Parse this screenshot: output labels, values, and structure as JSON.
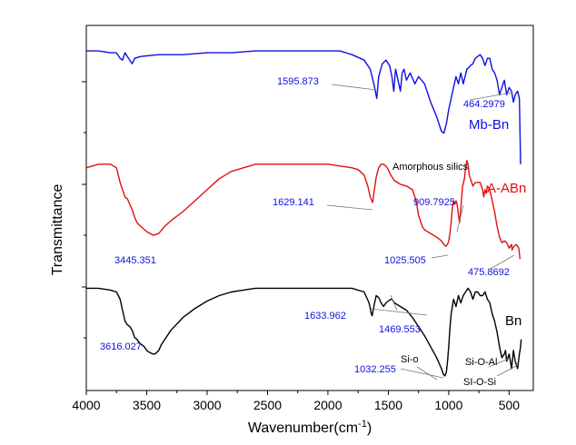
{
  "chart_data": {
    "type": "line",
    "xlabel": "Wavenumber(cm",
    "xlabel_sup": "-1",
    "xlabel_end": ")",
    "ylabel": "Transmittance",
    "xlim": [
      4000,
      300
    ],
    "x_reversed": true,
    "x_ticks": [
      4000,
      3500,
      3000,
      2500,
      2000,
      1500,
      1000,
      500
    ],
    "x_tick_labels": [
      "4000",
      "3500",
      "3000",
      "2500",
      "2000",
      "1500",
      "1000",
      "500"
    ],
    "ylim": [
      0,
      100
    ],
    "y_ticks_shown": false,
    "grid": false,
    "legend": "inline labels",
    "series": [
      {
        "name": "Mb-Bn",
        "color": "#1010e0",
        "points": [
          [
            4000,
            93
          ],
          [
            3900,
            93
          ],
          [
            3800,
            92.5
          ],
          [
            3750,
            92.5
          ],
          [
            3720,
            91
          ],
          [
            3700,
            90.5
          ],
          [
            3680,
            92.5
          ],
          [
            3650,
            91
          ],
          [
            3620,
            89.5
          ],
          [
            3600,
            91
          ],
          [
            3550,
            91.5
          ],
          [
            3400,
            92
          ],
          [
            3200,
            92
          ],
          [
            3000,
            92.5
          ],
          [
            2800,
            92.5
          ],
          [
            2600,
            93
          ],
          [
            2400,
            93
          ],
          [
            2200,
            93
          ],
          [
            2000,
            93
          ],
          [
            1900,
            93
          ],
          [
            1800,
            92
          ],
          [
            1700,
            90.5
          ],
          [
            1650,
            88
          ],
          [
            1620,
            84
          ],
          [
            1596,
            80
          ],
          [
            1580,
            86
          ],
          [
            1550,
            89.5
          ],
          [
            1520,
            90.5
          ],
          [
            1490,
            89
          ],
          [
            1470,
            86
          ],
          [
            1455,
            82
          ],
          [
            1440,
            88
          ],
          [
            1420,
            85
          ],
          [
            1400,
            82
          ],
          [
            1385,
            87
          ],
          [
            1370,
            88
          ],
          [
            1350,
            85
          ],
          [
            1320,
            87
          ],
          [
            1280,
            84
          ],
          [
            1250,
            86
          ],
          [
            1200,
            84
          ],
          [
            1150,
            79
          ],
          [
            1100,
            75
          ],
          [
            1060,
            71
          ],
          [
            1040,
            70.5
          ],
          [
            1020,
            73
          ],
          [
            1000,
            77
          ],
          [
            980,
            80
          ],
          [
            960,
            83
          ],
          [
            940,
            86
          ],
          [
            920,
            84
          ],
          [
            900,
            87
          ],
          [
            880,
            84
          ],
          [
            850,
            88
          ],
          [
            820,
            89
          ],
          [
            800,
            89.5
          ],
          [
            780,
            91
          ],
          [
            760,
            91.5
          ],
          [
            740,
            92
          ],
          [
            720,
            91
          ],
          [
            700,
            89
          ],
          [
            680,
            91
          ],
          [
            660,
            91
          ],
          [
            640,
            88
          ],
          [
            620,
            87
          ],
          [
            600,
            85
          ],
          [
            580,
            81
          ],
          [
            560,
            83
          ],
          [
            540,
            85
          ],
          [
            520,
            81
          ],
          [
            500,
            83
          ],
          [
            480,
            82
          ],
          [
            465,
            79
          ],
          [
            450,
            81
          ],
          [
            430,
            82
          ],
          [
            415,
            80
          ],
          [
            405,
            62
          ]
        ],
        "annotations": [
          {
            "text": "1595.873",
            "x": 1595.873
          },
          {
            "text": "464.2979",
            "x": 464.2979
          }
        ]
      },
      {
        "name": "A-ABn",
        "color": "#e01010",
        "points": [
          [
            4000,
            61
          ],
          [
            3900,
            62
          ],
          [
            3800,
            62
          ],
          [
            3750,
            61
          ],
          [
            3720,
            57
          ],
          [
            3700,
            55
          ],
          [
            3680,
            53
          ],
          [
            3660,
            52.5
          ],
          [
            3640,
            51
          ],
          [
            3620,
            49.5
          ],
          [
            3600,
            47.5
          ],
          [
            3580,
            46
          ],
          [
            3550,
            45
          ],
          [
            3500,
            43.5
          ],
          [
            3445,
            42.5
          ],
          [
            3400,
            43
          ],
          [
            3350,
            45
          ],
          [
            3300,
            46.5
          ],
          [
            3200,
            49
          ],
          [
            3100,
            52
          ],
          [
            3000,
            55
          ],
          [
            2900,
            58
          ],
          [
            2800,
            60
          ],
          [
            2700,
            61
          ],
          [
            2600,
            62
          ],
          [
            2500,
            62
          ],
          [
            2400,
            62
          ],
          [
            2200,
            62
          ],
          [
            2000,
            62
          ],
          [
            1900,
            61.5
          ],
          [
            1800,
            61
          ],
          [
            1750,
            60.5
          ],
          [
            1700,
            59
          ],
          [
            1670,
            56
          ],
          [
            1650,
            53
          ],
          [
            1630,
            51.5
          ],
          [
            1615,
            55
          ],
          [
            1600,
            58.5
          ],
          [
            1580,
            61
          ],
          [
            1560,
            62
          ],
          [
            1540,
            62
          ],
          [
            1520,
            61.5
          ],
          [
            1500,
            60.5
          ],
          [
            1480,
            59
          ],
          [
            1450,
            57.5
          ],
          [
            1400,
            56.5
          ],
          [
            1350,
            56
          ],
          [
            1300,
            55
          ],
          [
            1270,
            52
          ],
          [
            1250,
            48
          ],
          [
            1220,
            45
          ],
          [
            1200,
            44
          ],
          [
            1150,
            43
          ],
          [
            1100,
            42
          ],
          [
            1060,
            41
          ],
          [
            1040,
            40
          ],
          [
            1025,
            39.5
          ],
          [
            1010,
            40
          ],
          [
            1000,
            41
          ],
          [
            990,
            43
          ],
          [
            980,
            46
          ],
          [
            970,
            50
          ],
          [
            960,
            52
          ],
          [
            950,
            51
          ],
          [
            940,
            52
          ],
          [
            930,
            51
          ],
          [
            920,
            48
          ],
          [
            910,
            46
          ],
          [
            900,
            50
          ],
          [
            885,
            56
          ],
          [
            870,
            58
          ],
          [
            860,
            61
          ],
          [
            850,
            63
          ],
          [
            840,
            62
          ],
          [
            830,
            59
          ],
          [
            810,
            57
          ],
          [
            800,
            56
          ],
          [
            780,
            57
          ],
          [
            760,
            57
          ],
          [
            740,
            57
          ],
          [
            720,
            55
          ],
          [
            710,
            53
          ],
          [
            700,
            55
          ],
          [
            690,
            54
          ],
          [
            680,
            56
          ],
          [
            660,
            55
          ],
          [
            640,
            52
          ],
          [
            620,
            49
          ],
          [
            600,
            45
          ],
          [
            580,
            42
          ],
          [
            560,
            40.5
          ],
          [
            540,
            41
          ],
          [
            520,
            40.5
          ],
          [
            500,
            39
          ],
          [
            480,
            40
          ],
          [
            476,
            38.5
          ],
          [
            460,
            39.5
          ],
          [
            440,
            40
          ],
          [
            420,
            39
          ],
          [
            410,
            36
          ]
        ],
        "annotations": [
          {
            "text": "3445.351",
            "x": 3445.351
          },
          {
            "text": "1629.141",
            "x": 1629.141
          },
          {
            "text": "Amorphous silics"
          },
          {
            "text": "909.7925",
            "x": 909.7925
          },
          {
            "text": "1025.505",
            "x": 1025.505
          },
          {
            "text": "475.8692",
            "x": 475.8692
          }
        ]
      },
      {
        "name": "Bn",
        "color": "#000000",
        "points": [
          [
            4000,
            28
          ],
          [
            3900,
            28
          ],
          [
            3800,
            27.5
          ],
          [
            3750,
            27
          ],
          [
            3720,
            25
          ],
          [
            3700,
            22
          ],
          [
            3680,
            19
          ],
          [
            3660,
            18
          ],
          [
            3640,
            17.5
          ],
          [
            3620,
            16.5
          ],
          [
            3600,
            14.5
          ],
          [
            3580,
            14
          ],
          [
            3560,
            13
          ],
          [
            3540,
            12.5
          ],
          [
            3520,
            12
          ],
          [
            3500,
            11
          ],
          [
            3480,
            10.5
          ],
          [
            3450,
            10
          ],
          [
            3430,
            10
          ],
          [
            3400,
            11
          ],
          [
            3380,
            12.5
          ],
          [
            3350,
            14
          ],
          [
            3300,
            16.5
          ],
          [
            3200,
            20
          ],
          [
            3100,
            22.5
          ],
          [
            3000,
            24.5
          ],
          [
            2900,
            26
          ],
          [
            2800,
            27
          ],
          [
            2700,
            27.5
          ],
          [
            2600,
            28
          ],
          [
            2400,
            28
          ],
          [
            2200,
            28
          ],
          [
            2000,
            28
          ],
          [
            1900,
            28
          ],
          [
            1800,
            28
          ],
          [
            1700,
            27
          ],
          [
            1660,
            24
          ],
          [
            1640,
            21
          ],
          [
            1634,
            20.5
          ],
          [
            1620,
            23
          ],
          [
            1600,
            26
          ],
          [
            1580,
            25.5
          ],
          [
            1560,
            24
          ],
          [
            1540,
            23
          ],
          [
            1520,
            24
          ],
          [
            1500,
            24.5
          ],
          [
            1480,
            25
          ],
          [
            1470,
            25
          ],
          [
            1450,
            24
          ],
          [
            1400,
            23
          ],
          [
            1350,
            22
          ],
          [
            1300,
            20
          ],
          [
            1250,
            17.5
          ],
          [
            1200,
            15
          ],
          [
            1150,
            12
          ],
          [
            1100,
            9
          ],
          [
            1060,
            6
          ],
          [
            1045,
            4.5
          ],
          [
            1032,
            4
          ],
          [
            1020,
            5
          ],
          [
            1010,
            8
          ],
          [
            1000,
            12
          ],
          [
            990,
            17
          ],
          [
            980,
            21
          ],
          [
            970,
            23
          ],
          [
            960,
            25
          ],
          [
            940,
            23
          ],
          [
            920,
            26
          ],
          [
            900,
            24
          ],
          [
            880,
            26
          ],
          [
            860,
            27
          ],
          [
            840,
            28
          ],
          [
            820,
            27
          ],
          [
            800,
            25
          ],
          [
            780,
            27
          ],
          [
            760,
            27
          ],
          [
            740,
            26
          ],
          [
            720,
            26
          ],
          [
            700,
            27
          ],
          [
            680,
            25
          ],
          [
            660,
            24
          ],
          [
            640,
            21
          ],
          [
            620,
            19
          ],
          [
            600,
            16
          ],
          [
            580,
            12
          ],
          [
            560,
            9
          ],
          [
            540,
            10
          ],
          [
            530,
            11
          ],
          [
            520,
            8
          ],
          [
            510,
            9
          ],
          [
            500,
            10
          ],
          [
            480,
            6
          ],
          [
            465,
            11
          ],
          [
            450,
            8
          ],
          [
            430,
            6
          ],
          [
            415,
            10
          ],
          [
            405,
            12
          ],
          [
            400,
            14
          ]
        ],
        "annotations": [
          {
            "text": "3616.027",
            "x": 3616.027
          },
          {
            "text": "1633.962",
            "x": 1633.962
          },
          {
            "text": "1469.553",
            "x": 1469.553
          },
          {
            "text": "Si-o"
          },
          {
            "text": "1032.255",
            "x": 1032.255
          },
          {
            "text": "Si-O-Al"
          },
          {
            "text": "SI-O-Si"
          }
        ]
      }
    ]
  }
}
